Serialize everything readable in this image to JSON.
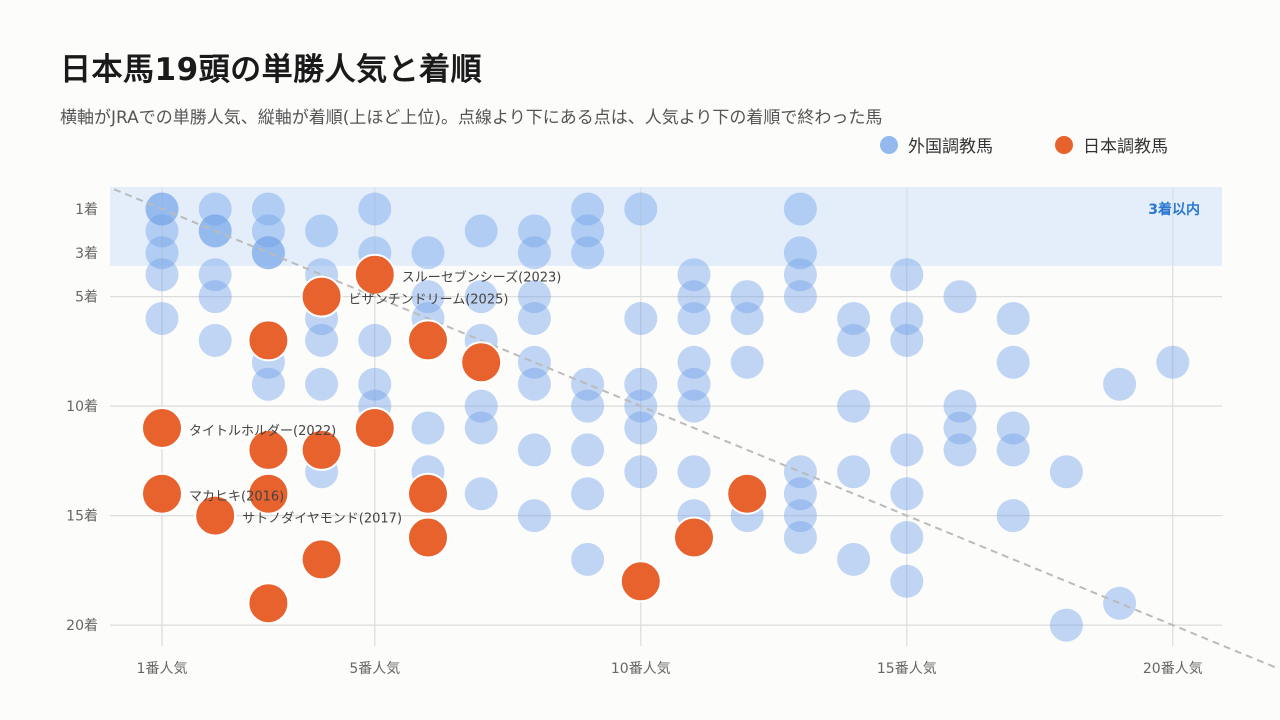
{
  "title": "日本馬19頭の単勝人気と着順",
  "subtitle": "横軸がJRAでの単勝人気、縦軸が着順(上ほど上位)。点線より下にある点は、人気より下の着順で終わった馬",
  "legend": {
    "position": "top-right",
    "foreign": "外国調教馬",
    "japan": "日本調教馬"
  },
  "colors": {
    "foreign": "#6d9fe8",
    "japan": "#e8622e",
    "band": "#e4eefb",
    "band_label": "#2a78d4",
    "grid": "#dcdcdc",
    "reference_line": "#bbbbbb"
  },
  "chart_data": {
    "type": "scatter",
    "title": "日本馬19頭の単勝人気と着順",
    "xlabel": "",
    "ylabel": "",
    "xlim": [
      0.1,
      22
    ],
    "ylim": [
      21,
      0.2
    ],
    "y_inverted": true,
    "x_ticks": [
      {
        "value": 1,
        "label": "1番人気"
      },
      {
        "value": 5,
        "label": "5番人気"
      },
      {
        "value": 10,
        "label": "10番人気"
      },
      {
        "value": 15,
        "label": "15番人気"
      },
      {
        "value": 20,
        "label": "20番人気"
      }
    ],
    "y_ticks": [
      {
        "value": 1,
        "label": "1着"
      },
      {
        "value": 3,
        "label": "3着"
      },
      {
        "value": 5,
        "label": "5着"
      },
      {
        "value": 10,
        "label": "10着"
      },
      {
        "value": 15,
        "label": "15着"
      },
      {
        "value": 20,
        "label": "20着"
      }
    ],
    "grid": true,
    "band": {
      "y_from": 0.2,
      "y_to": 3.6,
      "label": "3着以内"
    },
    "reference_line": {
      "from": [
        0.1,
        0.1
      ],
      "to": [
        22,
        22
      ],
      "style": "dashed"
    },
    "series": [
      {
        "name": "外国調教馬",
        "points": [
          {
            "x": 1,
            "y": 1
          },
          {
            "x": 1,
            "y": 1
          },
          {
            "x": 1,
            "y": 2
          },
          {
            "x": 1,
            "y": 3
          },
          {
            "x": 1,
            "y": 4
          },
          {
            "x": 1,
            "y": 6
          },
          {
            "x": 2,
            "y": 1
          },
          {
            "x": 2,
            "y": 2
          },
          {
            "x": 2,
            "y": 2
          },
          {
            "x": 2,
            "y": 4
          },
          {
            "x": 2,
            "y": 5
          },
          {
            "x": 2,
            "y": 7
          },
          {
            "x": 3,
            "y": 1
          },
          {
            "x": 3,
            "y": 2
          },
          {
            "x": 3,
            "y": 3
          },
          {
            "x": 3,
            "y": 3
          },
          {
            "x": 3,
            "y": 8
          },
          {
            "x": 3,
            "y": 9
          },
          {
            "x": 4,
            "y": 2
          },
          {
            "x": 4,
            "y": 4
          },
          {
            "x": 4,
            "y": 6
          },
          {
            "x": 4,
            "y": 7
          },
          {
            "x": 4,
            "y": 9
          },
          {
            "x": 4,
            "y": 13
          },
          {
            "x": 5,
            "y": 1
          },
          {
            "x": 5,
            "y": 3
          },
          {
            "x": 5,
            "y": 7
          },
          {
            "x": 5,
            "y": 9
          },
          {
            "x": 5,
            "y": 10
          },
          {
            "x": 6,
            "y": 3
          },
          {
            "x": 6,
            "y": 5
          },
          {
            "x": 6,
            "y": 6
          },
          {
            "x": 6,
            "y": 11
          },
          {
            "x": 6,
            "y": 13
          },
          {
            "x": 7,
            "y": 2
          },
          {
            "x": 7,
            "y": 5
          },
          {
            "x": 7,
            "y": 7
          },
          {
            "x": 7,
            "y": 10
          },
          {
            "x": 7,
            "y": 11
          },
          {
            "x": 7,
            "y": 14
          },
          {
            "x": 8,
            "y": 2
          },
          {
            "x": 8,
            "y": 3
          },
          {
            "x": 8,
            "y": 5
          },
          {
            "x": 8,
            "y": 6
          },
          {
            "x": 8,
            "y": 8
          },
          {
            "x": 8,
            "y": 9
          },
          {
            "x": 8,
            "y": 12
          },
          {
            "x": 8,
            "y": 15
          },
          {
            "x": 9,
            "y": 1
          },
          {
            "x": 9,
            "y": 2
          },
          {
            "x": 9,
            "y": 3
          },
          {
            "x": 9,
            "y": 9
          },
          {
            "x": 9,
            "y": 10
          },
          {
            "x": 9,
            "y": 12
          },
          {
            "x": 9,
            "y": 14
          },
          {
            "x": 9,
            "y": 17
          },
          {
            "x": 10,
            "y": 1
          },
          {
            "x": 10,
            "y": 6
          },
          {
            "x": 10,
            "y": 9
          },
          {
            "x": 10,
            "y": 10
          },
          {
            "x": 10,
            "y": 11
          },
          {
            "x": 10,
            "y": 13
          },
          {
            "x": 11,
            "y": 4
          },
          {
            "x": 11,
            "y": 5
          },
          {
            "x": 11,
            "y": 6
          },
          {
            "x": 11,
            "y": 8
          },
          {
            "x": 11,
            "y": 9
          },
          {
            "x": 11,
            "y": 10
          },
          {
            "x": 11,
            "y": 13
          },
          {
            "x": 11,
            "y": 15
          },
          {
            "x": 12,
            "y": 5
          },
          {
            "x": 12,
            "y": 6
          },
          {
            "x": 12,
            "y": 8
          },
          {
            "x": 12,
            "y": 15
          },
          {
            "x": 13,
            "y": 1
          },
          {
            "x": 13,
            "y": 3
          },
          {
            "x": 13,
            "y": 4
          },
          {
            "x": 13,
            "y": 5
          },
          {
            "x": 13,
            "y": 13
          },
          {
            "x": 13,
            "y": 14
          },
          {
            "x": 13,
            "y": 15
          },
          {
            "x": 13,
            "y": 16
          },
          {
            "x": 14,
            "y": 6
          },
          {
            "x": 14,
            "y": 7
          },
          {
            "x": 14,
            "y": 10
          },
          {
            "x": 14,
            "y": 13
          },
          {
            "x": 14,
            "y": 17
          },
          {
            "x": 15,
            "y": 4
          },
          {
            "x": 15,
            "y": 6
          },
          {
            "x": 15,
            "y": 7
          },
          {
            "x": 15,
            "y": 12
          },
          {
            "x": 15,
            "y": 14
          },
          {
            "x": 15,
            "y": 16
          },
          {
            "x": 15,
            "y": 18
          },
          {
            "x": 16,
            "y": 5
          },
          {
            "x": 16,
            "y": 10
          },
          {
            "x": 16,
            "y": 11
          },
          {
            "x": 16,
            "y": 12
          },
          {
            "x": 17,
            "y": 6
          },
          {
            "x": 17,
            "y": 8
          },
          {
            "x": 17,
            "y": 11
          },
          {
            "x": 17,
            "y": 12
          },
          {
            "x": 17,
            "y": 15
          },
          {
            "x": 18,
            "y": 13
          },
          {
            "x": 18,
            "y": 20
          },
          {
            "x": 19,
            "y": 9
          },
          {
            "x": 19,
            "y": 19
          },
          {
            "x": 20,
            "y": 8
          }
        ]
      },
      {
        "name": "日本調教馬",
        "points": [
          {
            "x": 1,
            "y": 11,
            "label": "タイトルホルダー(2022)"
          },
          {
            "x": 1,
            "y": 14,
            "label": "マカヒキ(2016)"
          },
          {
            "x": 2,
            "y": 15,
            "label": "サトノダイヤモンド(2017)"
          },
          {
            "x": 3,
            "y": 7
          },
          {
            "x": 3,
            "y": 12
          },
          {
            "x": 3,
            "y": 14
          },
          {
            "x": 3,
            "y": 19
          },
          {
            "x": 4,
            "y": 5,
            "label": "ビザンチンドリーム(2025)"
          },
          {
            "x": 4,
            "y": 12
          },
          {
            "x": 4,
            "y": 17
          },
          {
            "x": 5,
            "y": 4,
            "label": "スルーセブンシーズ(2023)"
          },
          {
            "x": 5,
            "y": 11
          },
          {
            "x": 6,
            "y": 7
          },
          {
            "x": 6,
            "y": 14
          },
          {
            "x": 6,
            "y": 16
          },
          {
            "x": 7,
            "y": 8
          },
          {
            "x": 10,
            "y": 18
          },
          {
            "x": 11,
            "y": 16
          },
          {
            "x": 12,
            "y": 14
          }
        ]
      }
    ]
  }
}
